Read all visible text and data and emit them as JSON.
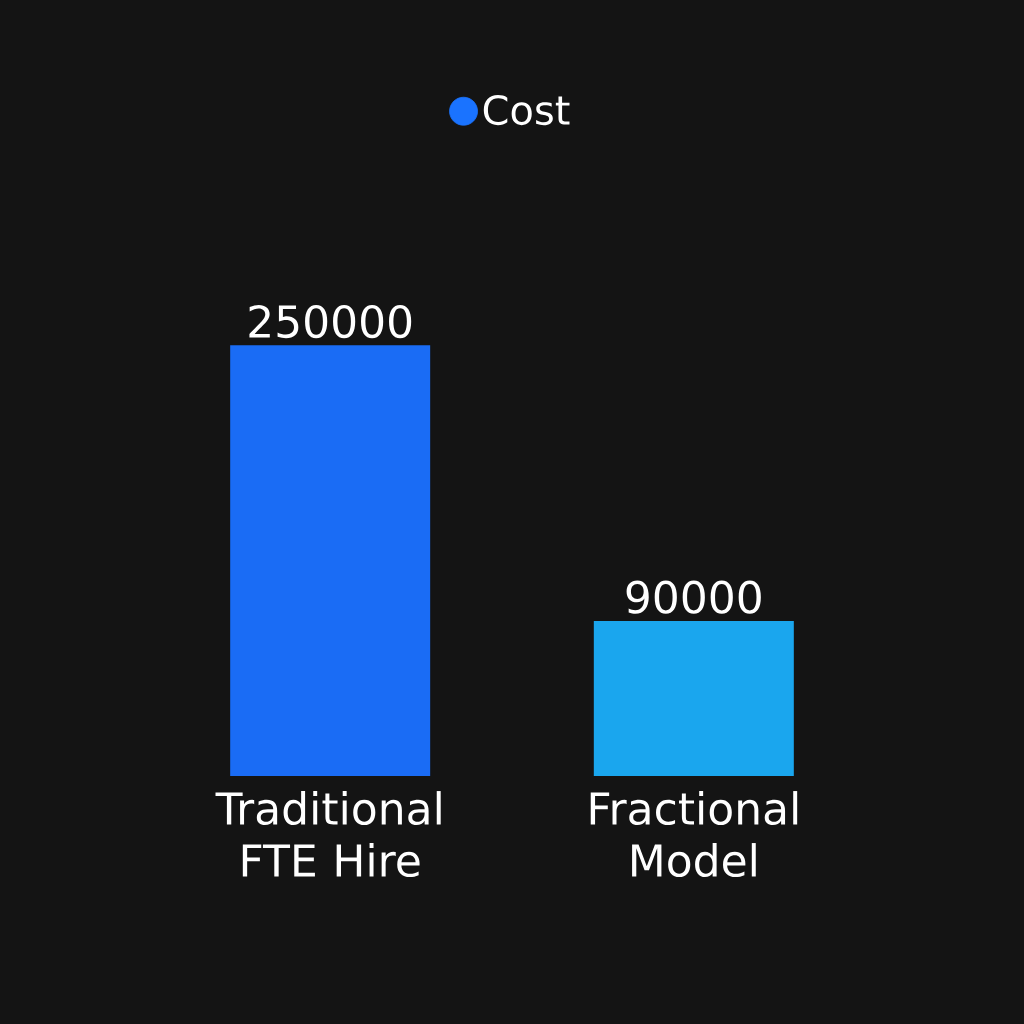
{
  "chart_data": {
    "type": "bar",
    "categories": [
      "Traditional FTE Hire",
      "Fractional Model"
    ],
    "series": [
      {
        "name": "Cost",
        "color": "#1a73ff",
        "colors": [
          "#1a6cf5",
          "#1aa6ee"
        ],
        "values": [
          250000,
          90000
        ]
      }
    ],
    "data_labels": true,
    "legend": "top"
  }
}
